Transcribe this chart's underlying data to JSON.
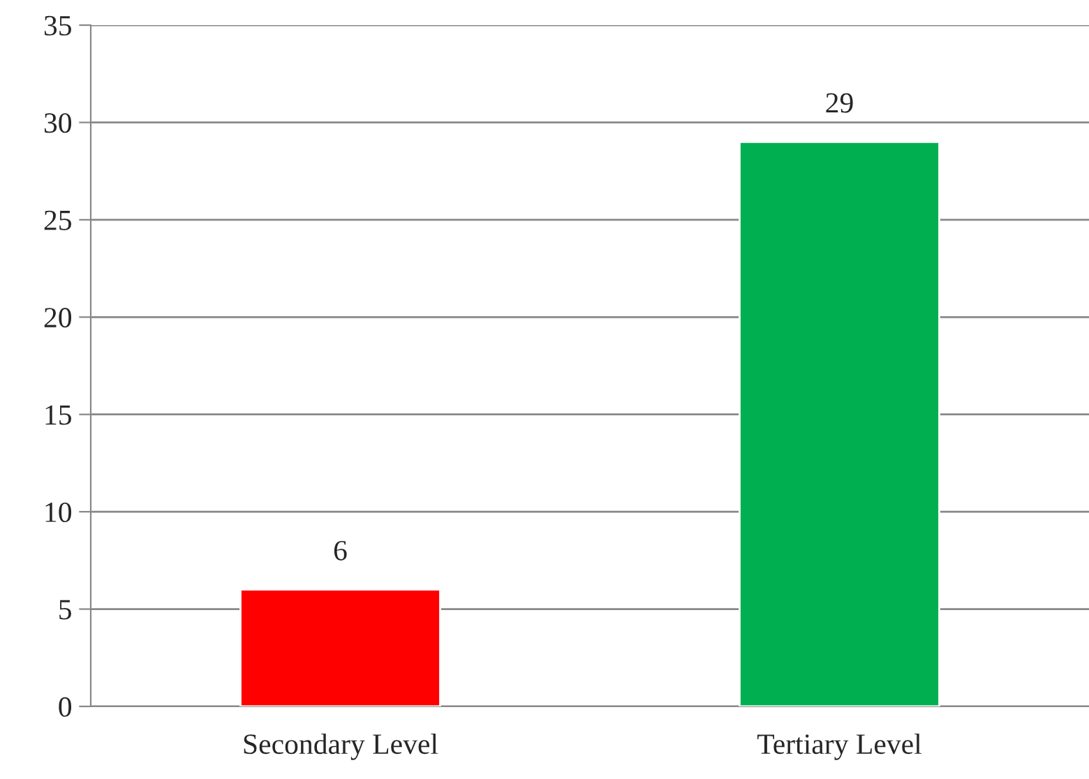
{
  "chart_data": {
    "type": "bar",
    "categories": [
      "Secondary Level",
      "Tertiary Level"
    ],
    "values": [
      6,
      29
    ],
    "colors": [
      "#ff0000",
      "#00b050"
    ],
    "ylim": [
      0,
      35
    ],
    "yticks": [
      0,
      5,
      10,
      15,
      20,
      25,
      30,
      35
    ],
    "grid": "y",
    "data_labels": true
  }
}
